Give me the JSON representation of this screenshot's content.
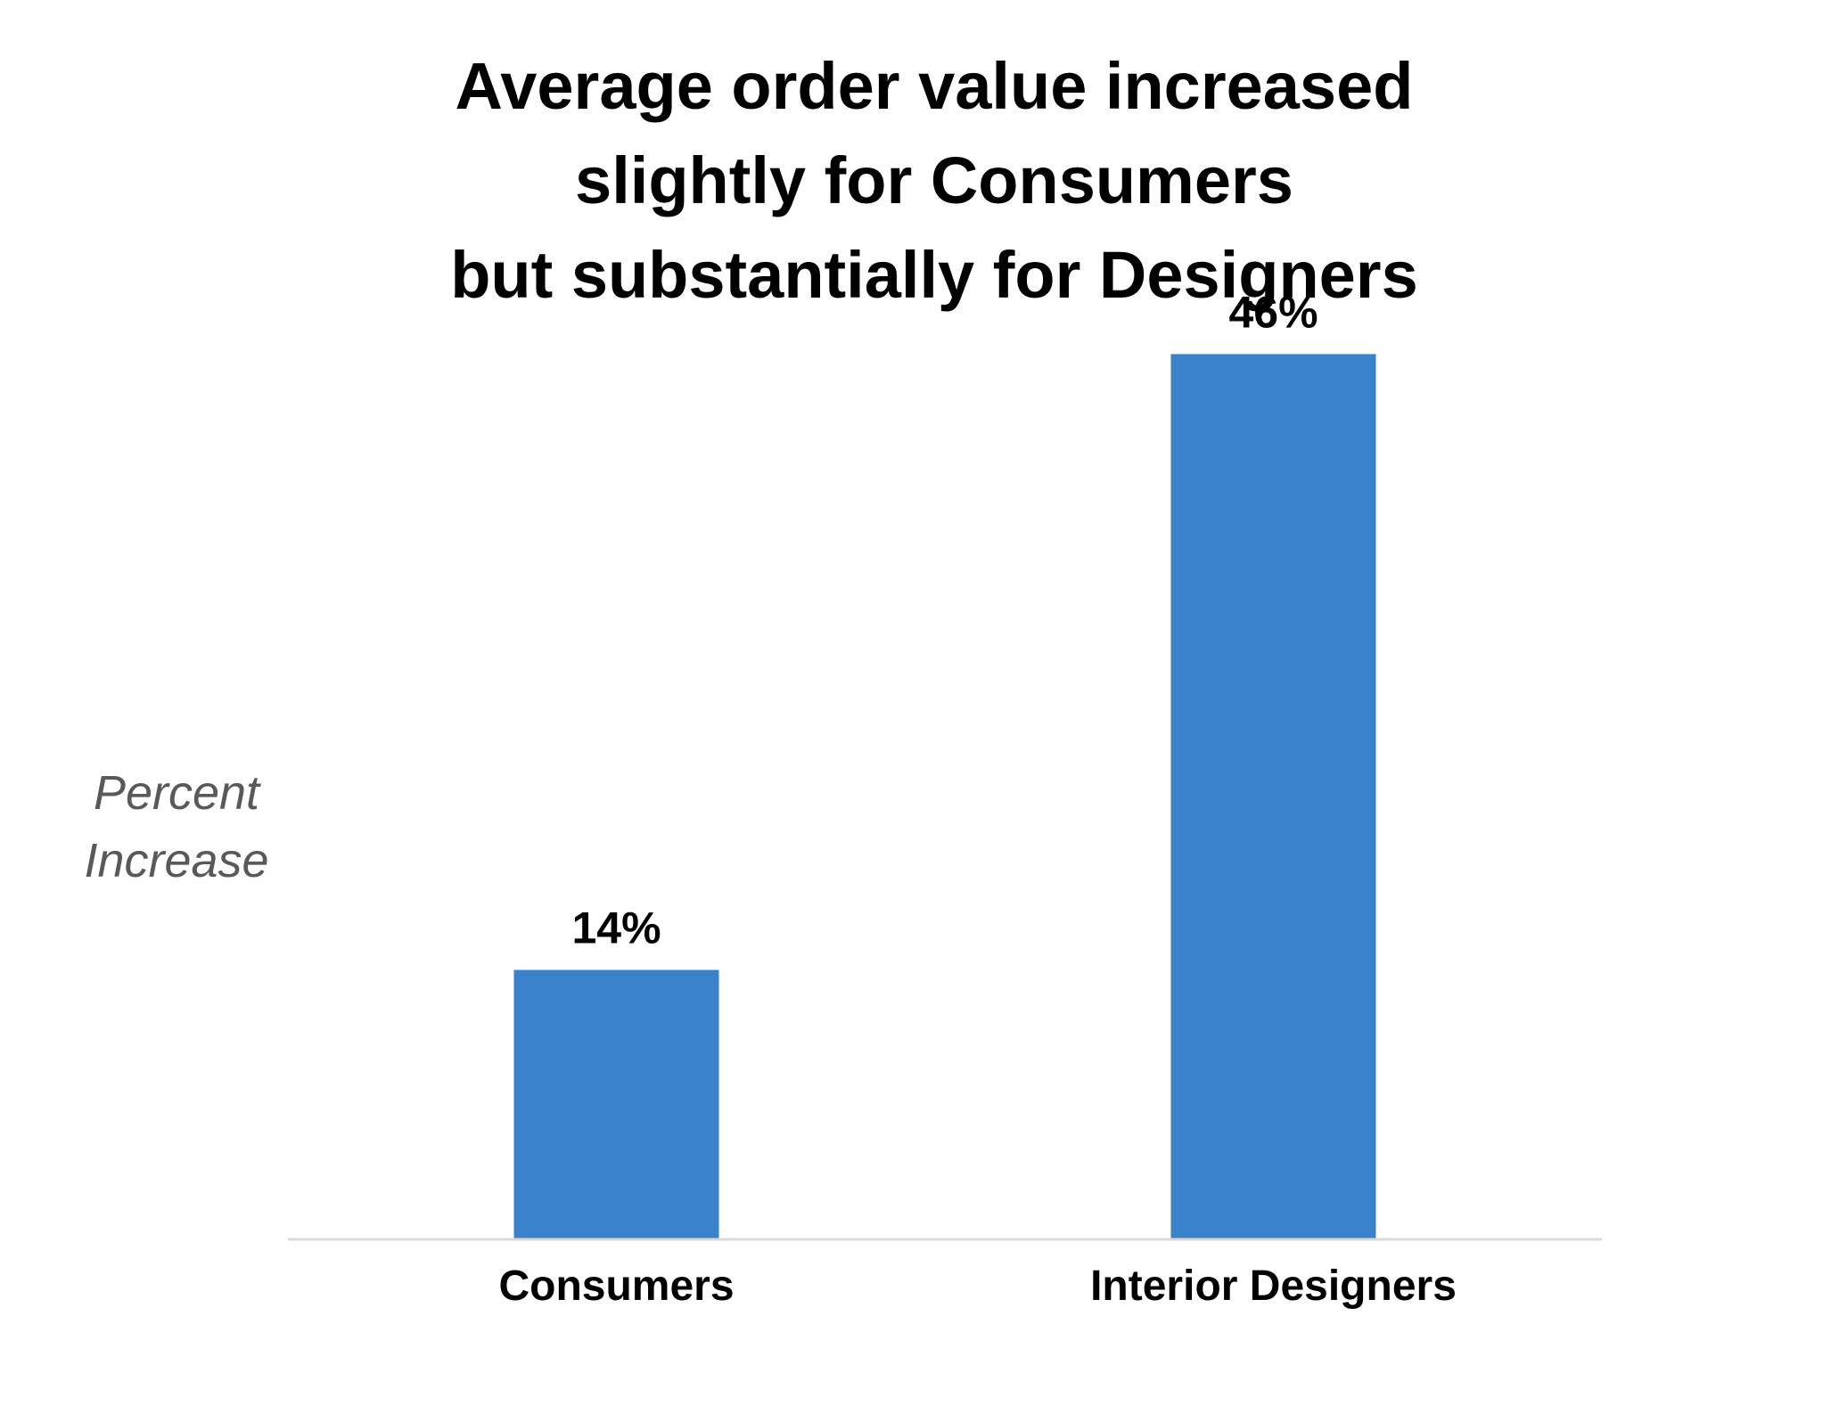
{
  "chart_data": {
    "type": "bar",
    "title_lines": [
      "Average order value increased",
      "slightly for Consumers",
      "but substantially for Designers"
    ],
    "ylabel_lines": [
      "Percent",
      "Increase"
    ],
    "xlabel": "",
    "categories": [
      "Consumers",
      "Interior Designers"
    ],
    "values": [
      14,
      46
    ],
    "data_labels": [
      "14%",
      "46%"
    ],
    "ylim": [
      0,
      50
    ],
    "grid": false,
    "legend": "none",
    "bar_color": "#3A82CA",
    "axis_color": "#D9D9D9"
  }
}
